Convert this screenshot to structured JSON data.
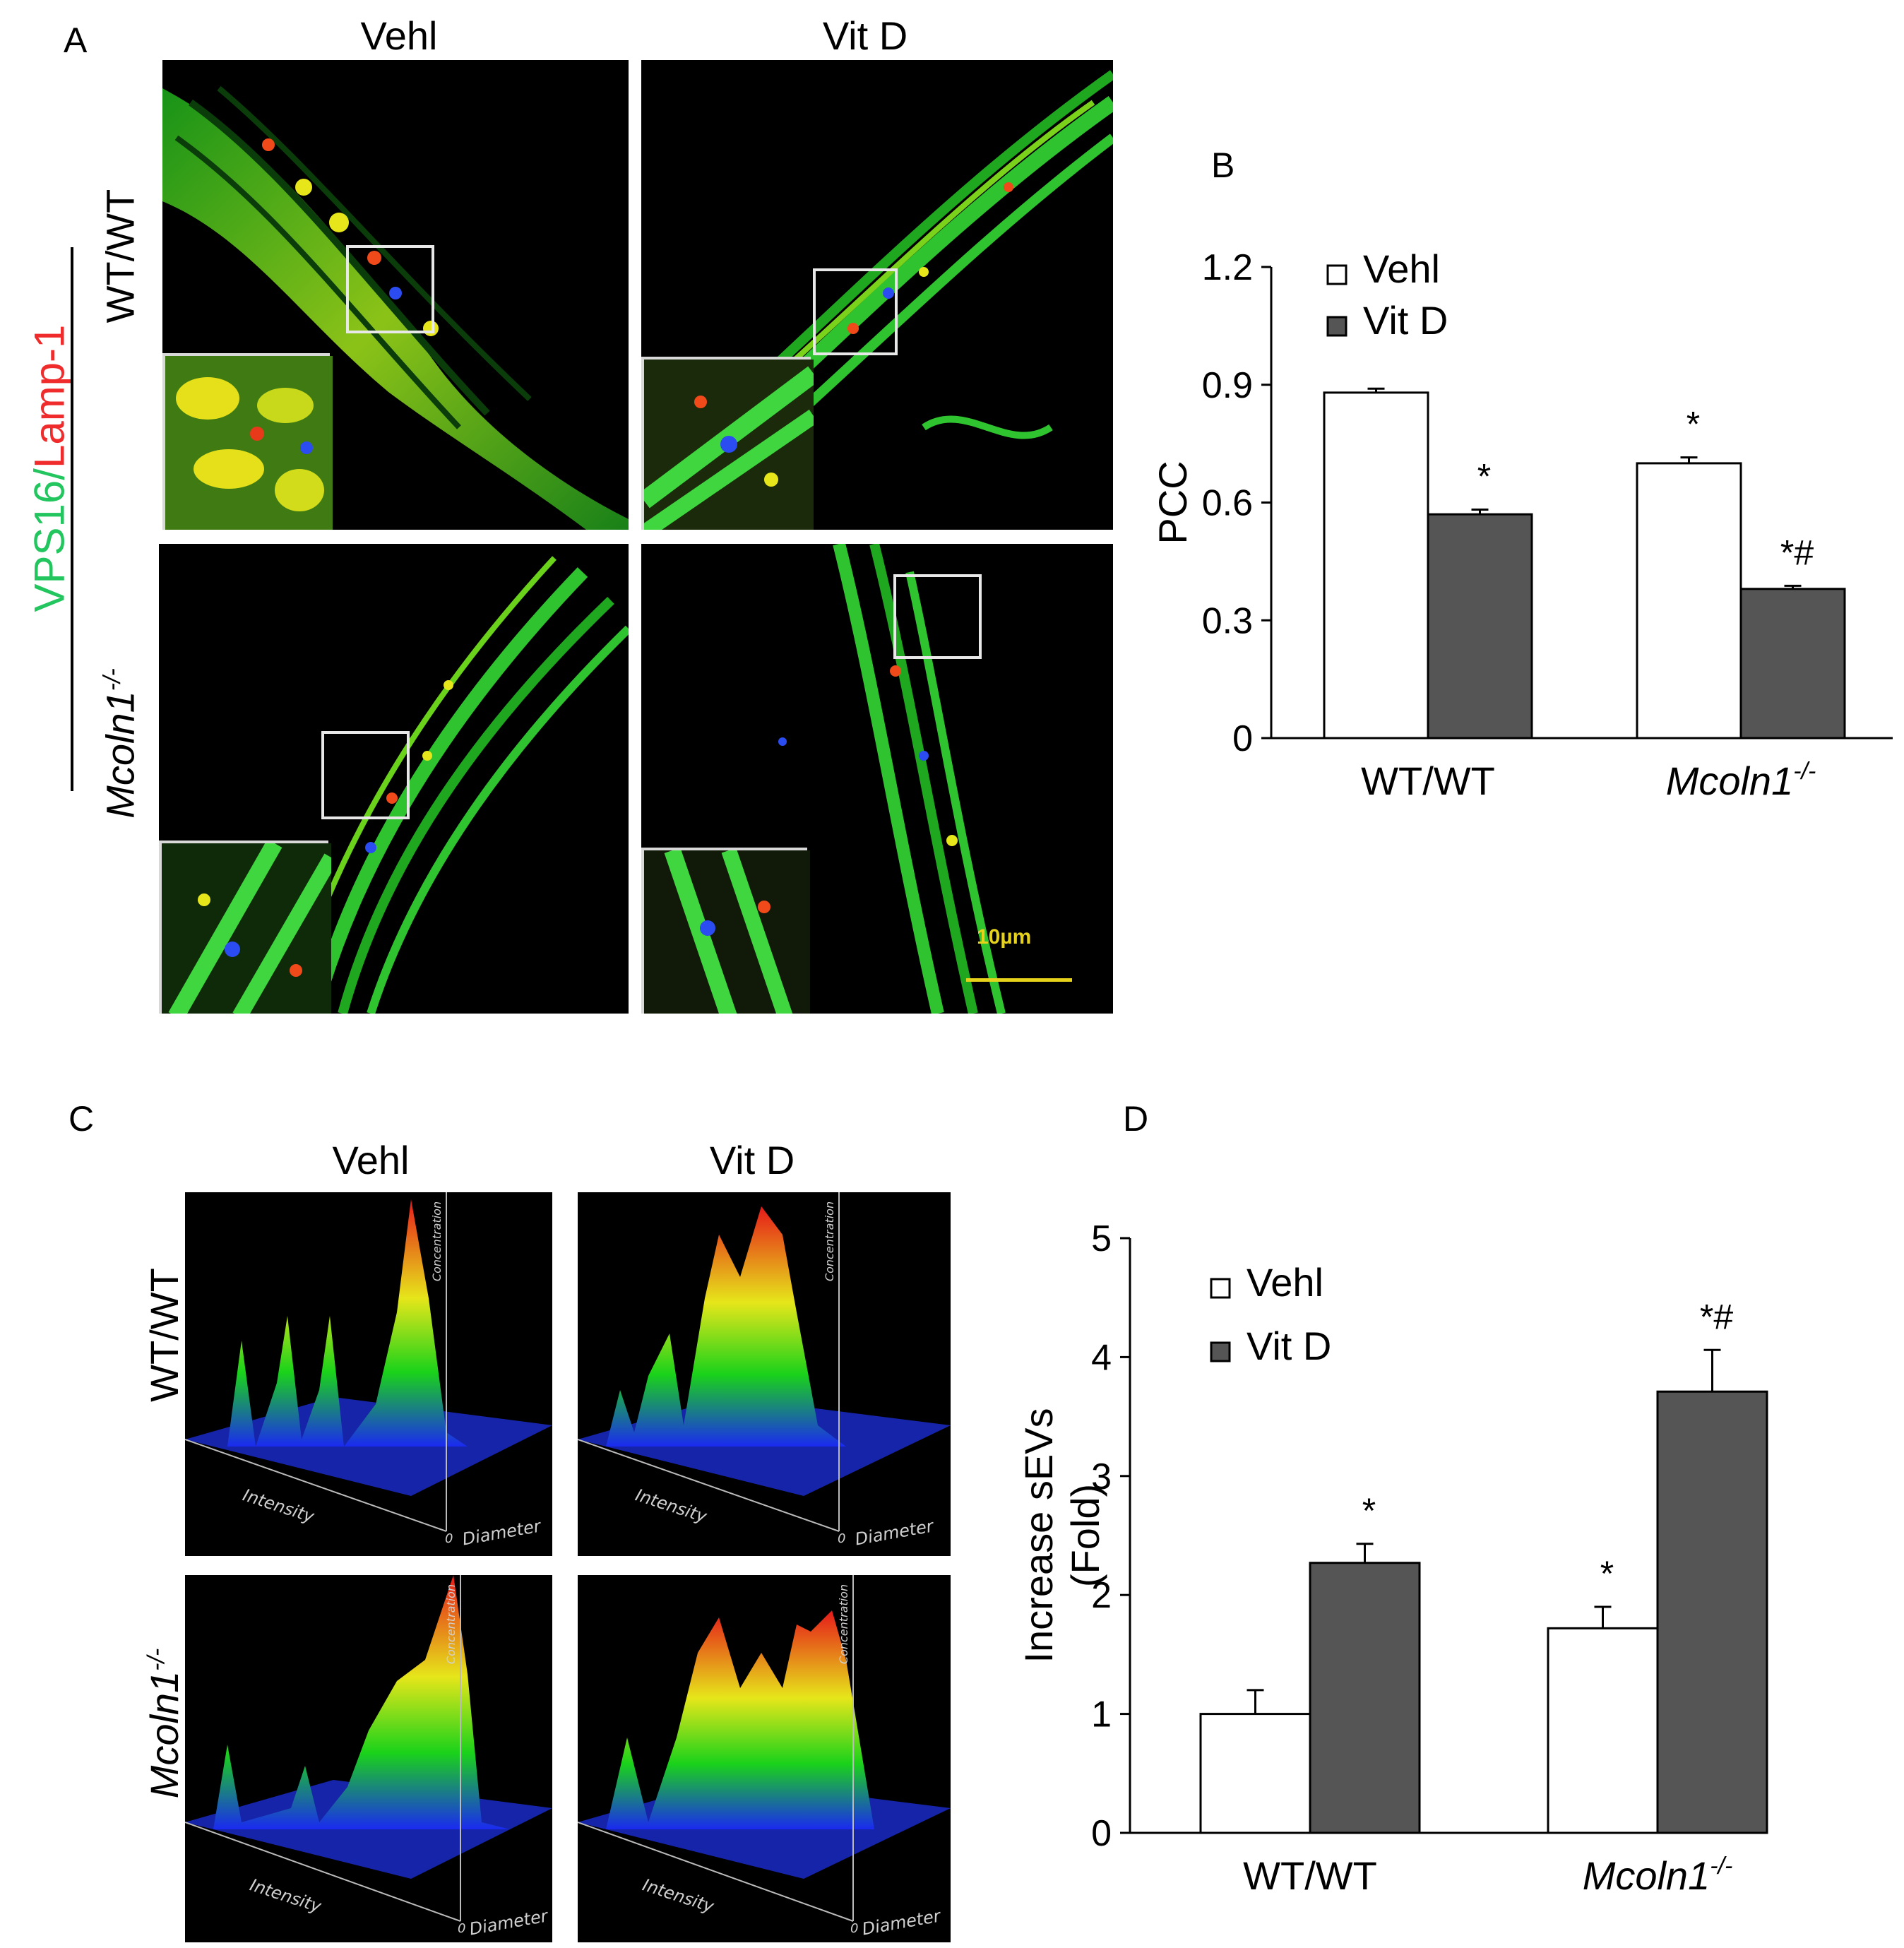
{
  "panels": {
    "a": {
      "letter": "A",
      "col_titles": [
        "Vehl",
        "Vit D"
      ],
      "row_labels": [
        "WT/WT",
        "Mcoln1"
      ],
      "row_label_sup": "-/-",
      "stain_green": "VPS16",
      "stain_sep": "/",
      "stain_red": "Lamp-1",
      "scale_bar": "10µm",
      "colors": {
        "green": "#22c55e",
        "red": "#ef2b2b",
        "scale": "#e6d21a"
      }
    },
    "b": {
      "letter": "B"
    },
    "c": {
      "letter": "C",
      "col_titles": [
        "Vehl",
        "Vit D"
      ],
      "row_labels": [
        "WT/WT",
        "Mcoln1"
      ],
      "row_label_sup": "-/-",
      "axis_intensity": "Intensity",
      "axis_diameter": "Diameter",
      "axis_concentration": "Concentration",
      "origin": "0"
    },
    "d": {
      "letter": "D"
    }
  },
  "chart_data": [
    {
      "type": "bar",
      "panel": "B",
      "categories": [
        "WT/WT",
        "Mcoln1"
      ],
      "category_sup": [
        "",
        "-/-"
      ],
      "series": [
        {
          "name": "Vehl",
          "values": [
            0.88,
            0.7
          ],
          "errors": [
            0.01,
            0.015
          ],
          "color": "#ffffff"
        },
        {
          "name": "Vit D",
          "values": [
            0.57,
            0.38
          ],
          "errors": [
            0.012,
            0.008
          ],
          "color": "#555555"
        }
      ],
      "annotations": [
        [
          "",
          "*"
        ],
        [
          "*",
          "*#"
        ]
      ],
      "ylabel": "PCC",
      "ylim": [
        0,
        1.2
      ],
      "yticks": [
        "0",
        "0.3",
        "0.6",
        "0.9",
        "1.2"
      ],
      "legend": "top-left"
    },
    {
      "type": "bar",
      "panel": "D",
      "categories": [
        "WT/WT",
        "Mcoln1"
      ],
      "category_sup": [
        "",
        "-/-"
      ],
      "series": [
        {
          "name": "Vehl",
          "values": [
            1.0,
            1.72
          ],
          "errors": [
            0.2,
            0.18
          ],
          "color": "#ffffff"
        },
        {
          "name": "Vit D",
          "values": [
            2.27,
            3.71
          ],
          "errors": [
            0.16,
            0.35
          ],
          "color": "#555555"
        }
      ],
      "annotations": [
        [
          "",
          "*"
        ],
        [
          "*",
          "*#"
        ]
      ],
      "ylabel_lines": [
        "Increase sEVs",
        "(Fold)"
      ],
      "ylim": [
        0,
        5
      ],
      "yticks": [
        "0",
        "1",
        "2",
        "3",
        "4",
        "5"
      ],
      "legend": "top-left"
    }
  ]
}
